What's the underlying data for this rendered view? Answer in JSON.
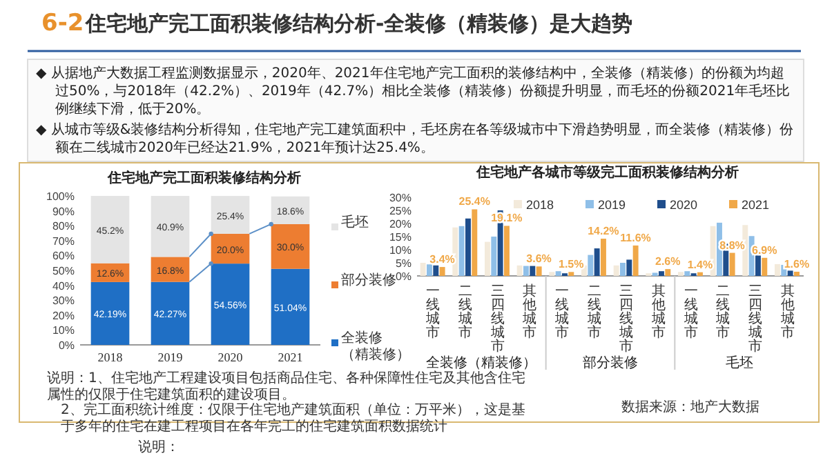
{
  "chart_data": [
    {
      "type": "other",
      "title": "住宅地产完工面积装修结构分析-全装修（精装修）是大趋势",
      "annotations": [
        "6-2",
        "◆ 从据地产大数据工程监测数据显示，2020年、2021年住宅地产完工面积的装修结构中，全装修（精装修）的份额为均超过50%，与2018年（42.2%）、2019年（42.7%）相比全装修（精装修）份额提升明显，而毛坯的份额2021年毛坯比例继续下滑，低于20%。",
        "◆ 从城市等级&装修结构分析得知，住宅地产完工建筑面积中，毛坯房在各等级城市中下滑趋势明显，而全装修（精装修）份额在二线城市2020年已经达21.9%，2021年预计达25.4%。",
        "说明："
      ]
    },
    {
      "type": "bar",
      "stacked": true,
      "title": "住宅地产完工面积装修结构分析",
      "categories": [
        "2018",
        "2019",
        "2020",
        "2021"
      ],
      "series": [
        {
          "name": "全装修（精装修）",
          "color": "#1f6fc5",
          "values": [
            42.19,
            42.27,
            54.56,
            51.04
          ],
          "value_labels": [
            "42.19%",
            "42.27%",
            "54.56%",
            "51.04%"
          ]
        },
        {
          "name": "部分装修",
          "color": "#ed7d31",
          "values": [
            12.6,
            16.8,
            20.0,
            30.0
          ],
          "value_labels": [
            "12.6%",
            "16.8%",
            "20.0%",
            "30.0%"
          ]
        },
        {
          "name": "毛坯",
          "color": "#e4e4e4",
          "values": [
            45.2,
            40.9,
            25.4,
            18.6
          ],
          "value_labels": [
            "45.2%",
            "40.9%",
            "25.4%",
            "18.6%"
          ]
        }
      ],
      "ylim": [
        0,
        100
      ],
      "yticks": [
        {
          "value": 0,
          "label": "0%"
        },
        {
          "value": 10,
          "label": "10%"
        },
        {
          "value": 20,
          "label": "20%"
        },
        {
          "value": 30,
          "label": "30%"
        },
        {
          "value": 40,
          "label": "40%"
        },
        {
          "value": 50,
          "label": "50%"
        },
        {
          "value": 60,
          "label": "60%"
        },
        {
          "value": 70,
          "label": "70%"
        },
        {
          "value": 80,
          "label": "80%"
        },
        {
          "value": 90,
          "label": "90%"
        },
        {
          "value": 100,
          "label": "100%"
        }
      ],
      "legend": "right",
      "annotations": [
        "说明：1、住宅地产工程建设项目包括商品住宅、各种保障性住宅及其他含住宅属性的仅限于住宅建筑面积的建设项目。",
        "2、完工面积统计维度：仅限于住宅地产建筑面积（单位：万平米），这是基于多年的住宅在建工程项目在各年完工的住宅建筑面积数据统计"
      ]
    },
    {
      "type": "bar",
      "title": "住宅地产各城市等级完工面积装修结构分析",
      "categories": [
        "一线城市",
        "二线城市",
        "三四线城市",
        "其他城市",
        "一线城市",
        "二线城市",
        "三四线城市",
        "其他城市",
        "一线城市",
        "二线城市",
        "三四线城市",
        "其他城市"
      ],
      "series": [
        {
          "name": "2018",
          "color": "#f3eadb",
          "values": [
            5,
            18.5,
            13,
            4,
            1.5,
            4,
            4,
            1,
            1.5,
            19,
            19.4,
            4.5
          ]
        },
        {
          "name": "2019",
          "color": "#8fbfe8",
          "values": [
            4.4,
            19,
            15,
            3.8,
            1.8,
            8,
            5,
            1.2,
            1.8,
            20.3,
            15.2,
            4.2
          ]
        },
        {
          "name": "2020",
          "color": "#1f4e8c",
          "values": [
            4,
            21.9,
            25,
            3.8,
            1,
            10.5,
            6.2,
            1.8,
            1,
            12.3,
            9.5,
            2
          ]
        },
        {
          "name": "2021",
          "color": "#f0a848",
          "values": [
            3.4,
            25.4,
            19.1,
            3.6,
            1.5,
            14.2,
            11.6,
            2.6,
            1.4,
            8.8,
            6.9,
            1.6
          ],
          "value_labels": [
            "3.4%",
            "25.4%",
            "19.1%",
            "3.6%",
            "1.5%",
            "14.2%",
            "11.6%",
            "2.6%",
            "1.4%",
            "8.8%",
            "6.9%",
            "1.6%"
          ]
        }
      ],
      "ylim": [
        0,
        30
      ],
      "yticks": [
        {
          "value": 0,
          "label": "0%"
        },
        {
          "value": 5,
          "label": "5%"
        },
        {
          "value": 10,
          "label": "10%"
        },
        {
          "value": 15,
          "label": "15%"
        },
        {
          "value": 20,
          "label": "20%"
        },
        {
          "value": 25,
          "label": "25%"
        },
        {
          "value": 30,
          "label": "30%"
        }
      ],
      "legend": "top",
      "annotations": [
        "全装修（精装修）",
        "部分装修",
        "毛坯",
        "数据来源：地产大数据"
      ]
    }
  ]
}
